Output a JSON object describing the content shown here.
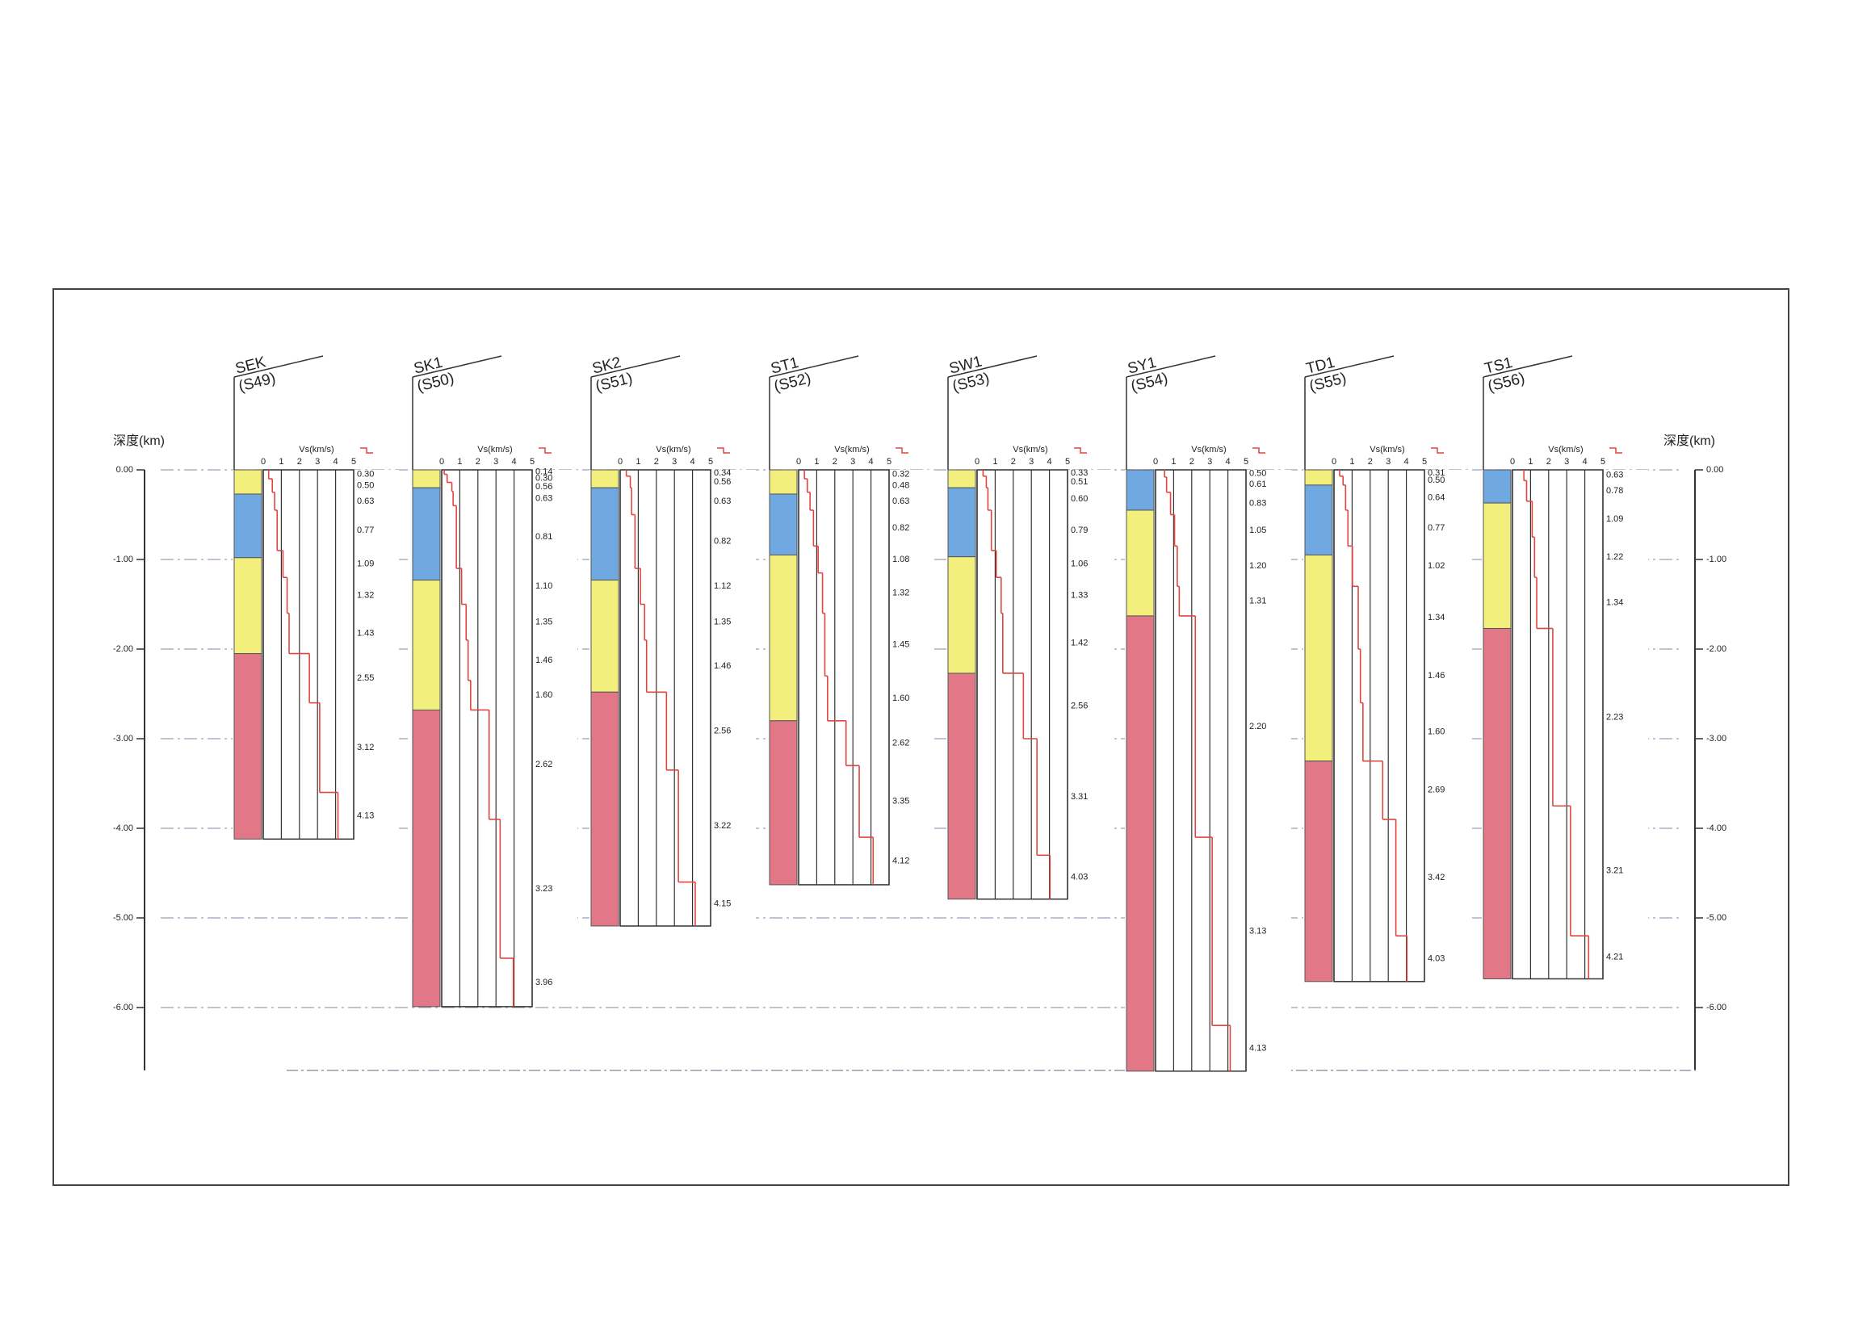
{
  "chart_data": {
    "type": "velocity-profiles",
    "depth_label": "深度(km)",
    "vs_label": "Vs(km/s)",
    "ylim": [
      0,
      -6.7
    ],
    "yticks": [
      {
        "value": 0,
        "label": "0.00"
      },
      {
        "value": -1,
        "label": "-1.00"
      },
      {
        "value": -2,
        "label": "-2.00"
      },
      {
        "value": -3,
        "label": "-3.00"
      },
      {
        "value": -4,
        "label": "-4.00"
      },
      {
        "value": -5,
        "label": "-5.00"
      },
      {
        "value": -6,
        "label": "-6.00"
      }
    ],
    "vs_lim": [
      0,
      5
    ],
    "vs_ticks": [
      0,
      1,
      2,
      3,
      4,
      5
    ],
    "grid": true,
    "step_color": "#e0453f",
    "columns": [
      {
        "name": "SEK",
        "code": "(S49)",
        "layers": [
          {
            "top": 0,
            "bottom": -0.27,
            "color": "#f2ef7c"
          },
          {
            "top": -0.27,
            "bottom": -0.98,
            "color": "#70a9e2"
          },
          {
            "top": -0.98,
            "bottom": -2.05,
            "color": "#f2ef7c"
          },
          {
            "top": -2.05,
            "bottom": -4.12,
            "color": "#e27787"
          }
        ],
        "tops": [
          0,
          -0.1,
          -0.25,
          -0.45,
          -0.9,
          -1.2,
          -1.6,
          -2.05,
          -2.6,
          -3.6
        ],
        "values": [
          0.3,
          0.5,
          0.63,
          0.77,
          1.09,
          1.32,
          1.43,
          2.55,
          3.12,
          4.13
        ],
        "value_labels": [
          "0.30",
          "0.50",
          "0.63",
          "0.77",
          "1.09",
          "1.32",
          "1.43",
          "2.55",
          "3.12",
          "4.13"
        ]
      },
      {
        "name": "SK1",
        "code": "(S50)",
        "layers": [
          {
            "top": 0,
            "bottom": -0.2,
            "color": "#f2ef7c"
          },
          {
            "top": -0.2,
            "bottom": -1.23,
            "color": "#70a9e2"
          },
          {
            "top": -1.23,
            "bottom": -2.68,
            "color": "#f2ef7c"
          },
          {
            "top": -2.68,
            "bottom": -5.99,
            "color": "#e27787"
          }
        ],
        "tops": [
          0,
          -0.05,
          -0.14,
          -0.24,
          -0.4,
          -1.1,
          -1.5,
          -1.9,
          -2.35,
          -2.68,
          -3.9,
          -5.45
        ],
        "values": [
          0.14,
          0.3,
          0.56,
          0.63,
          0.81,
          1.1,
          1.35,
          1.46,
          1.6,
          2.62,
          3.23,
          3.96
        ],
        "value_labels": [
          "0.14",
          "0.30",
          "0.56",
          "0.63",
          "0.81",
          "1.10",
          "1.35",
          "1.46",
          "1.60",
          "2.62",
          "3.23",
          "3.96"
        ]
      },
      {
        "name": "SK2",
        "code": "(S51)",
        "layers": [
          {
            "top": 0,
            "bottom": -0.2,
            "color": "#f2ef7c"
          },
          {
            "top": -0.2,
            "bottom": -1.23,
            "color": "#70a9e2"
          },
          {
            "top": -1.23,
            "bottom": -2.48,
            "color": "#f2ef7c"
          },
          {
            "top": -2.48,
            "bottom": -5.09,
            "color": "#e27787"
          }
        ],
        "tops": [
          0,
          -0.07,
          -0.2,
          -0.5,
          -1.1,
          -1.5,
          -1.9,
          -2.48,
          -3.35,
          -4.6
        ],
        "values": [
          0.34,
          0.56,
          0.63,
          0.82,
          1.12,
          1.35,
          1.46,
          2.56,
          3.22,
          4.15
        ],
        "value_labels": [
          "0.34",
          "0.56",
          "0.63",
          "0.82",
          "1.12",
          "1.35",
          "1.46",
          "2.56",
          "3.22",
          "4.15"
        ]
      },
      {
        "name": "ST1",
        "code": "(S52)",
        "layers": [
          {
            "top": 0,
            "bottom": -0.27,
            "color": "#f2ef7c"
          },
          {
            "top": -0.27,
            "bottom": -0.95,
            "color": "#70a9e2"
          },
          {
            "top": -0.95,
            "bottom": -2.8,
            "color": "#f2ef7c"
          },
          {
            "top": -2.8,
            "bottom": -4.63,
            "color": "#e27787"
          }
        ],
        "tops": [
          0,
          -0.1,
          -0.25,
          -0.45,
          -0.85,
          -1.15,
          -1.6,
          -2.3,
          -2.8,
          -3.3,
          -4.1
        ],
        "values": [
          0.32,
          0.48,
          0.63,
          0.82,
          1.08,
          1.32,
          1.45,
          1.6,
          2.62,
          3.35,
          4.12
        ],
        "value_labels": [
          "0.32",
          "0.48",
          "0.63",
          "0.82",
          "1.08",
          "1.32",
          "1.45",
          "1.60",
          "2.62",
          "3.35",
          "4.12"
        ]
      },
      {
        "name": "SW1",
        "code": "(S53)",
        "layers": [
          {
            "top": 0,
            "bottom": -0.2,
            "color": "#f2ef7c"
          },
          {
            "top": -0.2,
            "bottom": -0.97,
            "color": "#70a9e2"
          },
          {
            "top": -0.97,
            "bottom": -2.27,
            "color": "#f2ef7c"
          },
          {
            "top": -2.27,
            "bottom": -4.79,
            "color": "#e27787"
          }
        ],
        "tops": [
          0,
          -0.07,
          -0.2,
          -0.45,
          -0.9,
          -1.2,
          -1.6,
          -2.27,
          -3.0,
          -4.3
        ],
        "values": [
          0.33,
          0.51,
          0.6,
          0.79,
          1.06,
          1.33,
          1.42,
          2.56,
          3.31,
          4.03
        ],
        "value_labels": [
          "0.33",
          "0.51",
          "0.60",
          "0.79",
          "1.06",
          "1.33",
          "1.42",
          "2.56",
          "3.31",
          "4.03"
        ]
      },
      {
        "name": "SY1",
        "code": "(S54)",
        "layers": [
          {
            "top": 0,
            "bottom": -0.45,
            "color": "#70a9e2"
          },
          {
            "top": -0.45,
            "bottom": -1.63,
            "color": "#f2ef7c"
          },
          {
            "top": -1.63,
            "bottom": -6.71,
            "color": "#e27787"
          }
        ],
        "tops": [
          0,
          -0.08,
          -0.25,
          -0.5,
          -0.85,
          -1.3,
          -1.63,
          -4.1,
          -6.2
        ],
        "values": [
          0.5,
          0.61,
          0.83,
          1.05,
          1.2,
          1.31,
          2.2,
          3.13,
          4.13
        ],
        "value_labels": [
          "0.50",
          "0.61",
          "0.83",
          "1.05",
          "1.20",
          "1.31",
          "2.20",
          "3.13",
          "4.13"
        ]
      },
      {
        "name": "TD1",
        "code": "(S55)",
        "layers": [
          {
            "top": 0,
            "bottom": -0.17,
            "color": "#f2ef7c"
          },
          {
            "top": -0.17,
            "bottom": -0.95,
            "color": "#70a9e2"
          },
          {
            "top": -0.95,
            "bottom": -3.25,
            "color": "#f2ef7c"
          },
          {
            "top": -3.25,
            "bottom": -5.71,
            "color": "#e27787"
          }
        ],
        "tops": [
          0,
          -0.07,
          -0.17,
          -0.45,
          -0.85,
          -1.3,
          -2.0,
          -2.6,
          -3.25,
          -3.9,
          -5.2
        ],
        "values": [
          0.31,
          0.5,
          0.64,
          0.77,
          1.02,
          1.34,
          1.46,
          1.6,
          2.69,
          3.42,
          4.03
        ],
        "value_labels": [
          "0.31",
          "0.50",
          "0.64",
          "0.77",
          "1.02",
          "1.34",
          "1.46",
          "1.60",
          "2.69",
          "3.42",
          "4.03"
        ]
      },
      {
        "name": "TS1",
        "code": "(S56)",
        "layers": [
          {
            "top": 0,
            "bottom": -0.37,
            "color": "#70a9e2"
          },
          {
            "top": -0.37,
            "bottom": -1.77,
            "color": "#f2ef7c"
          },
          {
            "top": -1.77,
            "bottom": -5.68,
            "color": "#e27787"
          }
        ],
        "tops": [
          0,
          -0.12,
          -0.35,
          -0.75,
          -1.2,
          -1.77,
          -3.75,
          -5.2
        ],
        "values": [
          0.63,
          0.78,
          1.09,
          1.22,
          1.34,
          2.23,
          3.21,
          4.21
        ],
        "value_labels": [
          "0.63",
          "0.78",
          "1.09",
          "1.22",
          "1.34",
          "2.23",
          "3.21",
          "4.21"
        ]
      }
    ]
  }
}
